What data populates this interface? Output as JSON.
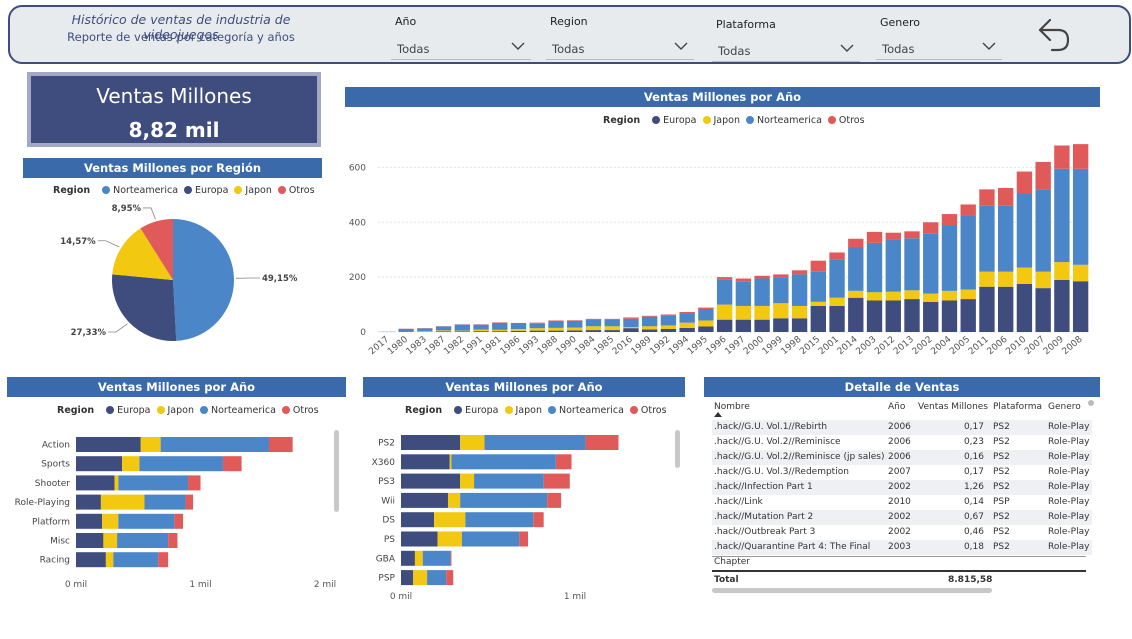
{
  "header": {
    "title": "Histórico de ventas de industria de videojuegos",
    "subtitle": "Reporte de ventas por categoría y años",
    "filters": [
      {
        "label": "Año",
        "value": "Todas"
      },
      {
        "label": "Region",
        "value": "Todas"
      },
      {
        "label": "Plataforma",
        "value": "Todas"
      },
      {
        "label": "Genero",
        "value": "Todas"
      }
    ],
    "back_icon": "undo-arrow-icon"
  },
  "kpi": {
    "title": "Ventas Millones",
    "value": "8,82 mil"
  },
  "colors": {
    "Europa": "#3e4d7e",
    "Japon": "#f2c811",
    "Norteamerica": "#4a86c8",
    "Otros": "#e05a5a",
    "header": "#3a6aaa"
  },
  "pie": {
    "title": "Ventas Millones por Región",
    "legend_title": "Region",
    "legend": [
      "Norteamerica",
      "Europa",
      "Japon",
      "Otros"
    ],
    "labels": [
      "49,15%",
      "27,33%",
      "14,57%",
      "8,95%"
    ]
  },
  "yearchart": {
    "title": "Ventas Millones por Año",
    "legend_title": "Region",
    "legend": [
      "Europa",
      "Japon",
      "Norteamerica",
      "Otros"
    ],
    "yticks": [
      "0",
      "200",
      "400",
      "600"
    ]
  },
  "genre": {
    "title": "Ventas Millones por Año",
    "legend_title": "Region",
    "legend": [
      "Europa",
      "Japon",
      "Norteamerica",
      "Otros"
    ],
    "xticks": [
      "0 mil",
      "1 mil",
      "2 mil"
    ]
  },
  "platform": {
    "title": "Ventas Millones por Año",
    "legend_title": "Region",
    "legend": [
      "Europa",
      "Japon",
      "Norteamerica",
      "Otros"
    ],
    "xticks": [
      "0 mil",
      "1 mil"
    ]
  },
  "table": {
    "title": "Detalle de Ventas",
    "columns": [
      "Nombre",
      "Año",
      "Ventas Millones",
      "Plataforma",
      "Genero"
    ],
    "rows": [
      [
        ".hack//G.U. Vol.1//Rebirth",
        "2006",
        "0,17",
        "PS2",
        "Role-Play"
      ],
      [
        ".hack//G.U. Vol.2//Reminisce",
        "2006",
        "0,23",
        "PS2",
        "Role-Play"
      ],
      [
        ".hack//G.U. Vol.2//Reminisce (jp sales)",
        "2006",
        "0,16",
        "PS2",
        "Role-Play"
      ],
      [
        ".hack//G.U. Vol.3//Redemption",
        "2007",
        "0,17",
        "PS2",
        "Role-Play"
      ],
      [
        ".hack//Infection Part 1",
        "2002",
        "1,26",
        "PS2",
        "Role-Play"
      ],
      [
        ".hack//Link",
        "2010",
        "0,14",
        "PSP",
        "Role-Play"
      ],
      [
        ".hack//Mutation Part 2",
        "2002",
        "0,67",
        "PS2",
        "Role-Play"
      ],
      [
        ".hack//Outbreak Part 3",
        "2002",
        "0,46",
        "PS2",
        "Role-Play"
      ],
      [
        ".hack//Quarantine Part 4: The Final",
        "2003",
        "0,18",
        "PS2",
        "Role-Play"
      ]
    ],
    "row_continuation": "Chapter",
    "total_label": "Total",
    "total_value": "8.815,58"
  },
  "chart_data": [
    {
      "type": "pie",
      "title": "Ventas Millones por Región",
      "categories": [
        "Norteamerica",
        "Europa",
        "Japon",
        "Otros"
      ],
      "values": [
        49.15,
        27.33,
        14.57,
        8.95
      ]
    },
    {
      "type": "bar",
      "title": "Ventas Millones por Año",
      "stacked": true,
      "ylim": [
        0,
        700
      ],
      "categories": [
        "2017",
        "1980",
        "1983",
        "1987",
        "1982",
        "1991",
        "1981",
        "1986",
        "1993",
        "1988",
        "1990",
        "1984",
        "1985",
        "2016",
        "1989",
        "1992",
        "1994",
        "1995",
        "1996",
        "1997",
        "2000",
        "1999",
        "1998",
        "2015",
        "2001",
        "2014",
        "2003",
        "2012",
        "2013",
        "2002",
        "2004",
        "2005",
        "2011",
        "2006",
        "2010",
        "2007",
        "2009",
        "2008"
      ],
      "series": [
        {
          "name": "Europa",
          "values": [
            0,
            1,
            1,
            2,
            2,
            3,
            3,
            4,
            5,
            5,
            6,
            7,
            7,
            14,
            9,
            11,
            15,
            20,
            45,
            45,
            45,
            50,
            50,
            95,
            95,
            125,
            115,
            115,
            120,
            110,
            115,
            120,
            165,
            165,
            175,
            160,
            190,
            185
          ]
        },
        {
          "name": "Japon",
          "values": [
            0,
            0,
            2,
            4,
            3,
            6,
            5,
            7,
            9,
            10,
            10,
            14,
            14,
            4,
            12,
            13,
            19,
            22,
            55,
            50,
            50,
            55,
            45,
            15,
            30,
            25,
            30,
            32,
            32,
            30,
            35,
            35,
            55,
            55,
            60,
            60,
            65,
            60
          ]
        },
        {
          "name": "Norteamerica",
          "values": [
            1,
            10,
            10,
            14,
            22,
            18,
            25,
            20,
            18,
            25,
            25,
            25,
            25,
            30,
            35,
            37,
            35,
            42,
            90,
            90,
            100,
            95,
            115,
            110,
            140,
            160,
            180,
            190,
            190,
            220,
            240,
            270,
            240,
            240,
            270,
            300,
            340,
            350
          ]
        },
        {
          "name": "Otros",
          "values": [
            0,
            1,
            1,
            1,
            1,
            1,
            2,
            2,
            2,
            2,
            2,
            2,
            2,
            5,
            3,
            3,
            4,
            5,
            10,
            10,
            10,
            10,
            15,
            40,
            25,
            30,
            40,
            25,
            25,
            40,
            40,
            40,
            60,
            65,
            80,
            100,
            85,
            90
          ]
        }
      ]
    },
    {
      "type": "bar",
      "orientation": "horizontal",
      "title": "Ventas Millones por Año",
      "stacked": true,
      "categories": [
        "Action",
        "Sports",
        "Shooter",
        "Role-Playing",
        "Platform",
        "Misc",
        "Racing"
      ],
      "xlim": [
        0,
        2000
      ],
      "series": [
        {
          "name": "Europa",
          "values": [
            520,
            370,
            310,
            200,
            210,
            220,
            240
          ]
        },
        {
          "name": "Japon",
          "values": [
            160,
            140,
            30,
            350,
            130,
            110,
            60
          ]
        },
        {
          "name": "Norteamerica",
          "values": [
            870,
            670,
            560,
            330,
            450,
            410,
            360
          ]
        },
        {
          "name": "Otros",
          "values": [
            190,
            150,
            100,
            60,
            70,
            75,
            80
          ]
        }
      ]
    },
    {
      "type": "bar",
      "orientation": "horizontal",
      "title": "Ventas Millones por Año",
      "stacked": true,
      "categories": [
        "PS2",
        "X360",
        "PS3",
        "Wii",
        "DS",
        "PS",
        "GBA",
        "PSP"
      ],
      "xlim": [
        0,
        1500
      ],
      "series": [
        {
          "name": "Europa",
          "values": [
            340,
            280,
            340,
            270,
            190,
            210,
            80,
            70
          ]
        },
        {
          "name": "Japon",
          "values": [
            140,
            10,
            80,
            70,
            180,
            140,
            45,
            80
          ]
        },
        {
          "name": "Norteamerica",
          "values": [
            580,
            600,
            400,
            500,
            390,
            330,
            160,
            110
          ]
        },
        {
          "name": "Otros",
          "values": [
            190,
            90,
            150,
            80,
            60,
            50,
            5,
            40
          ]
        }
      ]
    }
  ]
}
